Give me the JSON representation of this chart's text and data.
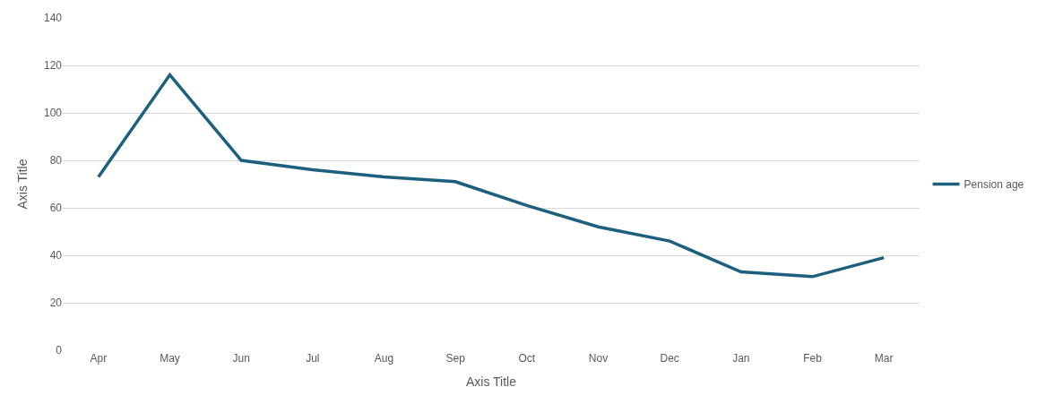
{
  "chart_data": {
    "type": "line",
    "xlabel": "Axis Title",
    "ylabel": "Axis Title",
    "categories": [
      "Apr",
      "May",
      "Jun",
      "Jul",
      "Aug",
      "Sep",
      "Oct",
      "Nov",
      "Dec",
      "Jan",
      "Feb",
      "Mar"
    ],
    "series": [
      {
        "name": "Pension age",
        "color": "#1d5f7e",
        "values": [
          73,
          116,
          80,
          76,
          73,
          71,
          61,
          52,
          46,
          33,
          31,
          39
        ]
      }
    ],
    "ylim": [
      0,
      140
    ],
    "yticks": [
      0,
      20,
      40,
      60,
      80,
      100,
      120,
      140
    ],
    "grid": "y",
    "legend": "right",
    "marker": "none",
    "line_style": "solid"
  }
}
